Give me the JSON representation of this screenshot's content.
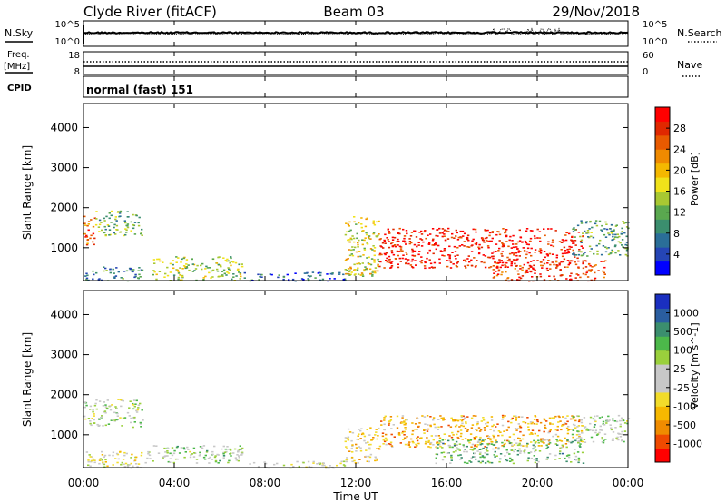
{
  "header": {
    "station": "Clyde River (fitACF)",
    "beam": "Beam 03",
    "date": "29/Nov/2018"
  },
  "noise_panel": {
    "left_label": "N.Sky",
    "right_label": "N.Search",
    "left_ticks": [
      "10^5",
      "10^0"
    ],
    "right_ticks": [
      "10^5",
      "10^0"
    ]
  },
  "freq_panel": {
    "left_label_1": "Freq.",
    "left_label_2": "[MHz]",
    "right_label": "Nave",
    "left_ticks": [
      "18",
      "8"
    ],
    "right_ticks": [
      "60",
      "0"
    ]
  },
  "cpid": {
    "label": "CPID",
    "text": "normal (fast) 151"
  },
  "x_axis": {
    "ticks": [
      "00:00",
      "04:00",
      "08:00",
      "12:00",
      "16:00",
      "20:00",
      "00:00"
    ],
    "label": "Time UT"
  },
  "chart_data": [
    {
      "type": "heatmap",
      "name": "power",
      "xlabel": "Time UT",
      "ylabel": "Slant Range [km]",
      "xlim": [
        0,
        24
      ],
      "ylim": [
        180,
        4600
      ],
      "yticks": [
        "4000",
        "3000",
        "2000",
        "1000"
      ],
      "colorbar": {
        "label": "Power [dB]",
        "ticks": [
          "28",
          "24",
          "20",
          "16",
          "12",
          "8",
          "4"
        ],
        "range": [
          0,
          30
        ],
        "colors": [
          "#0000ff",
          "#2545b5",
          "#2a6e98",
          "#3b8e6e",
          "#5aa84f",
          "#a8c832",
          "#f0e21a",
          "#f4b800",
          "#ef8a00",
          "#e85a00",
          "#e02800",
          "#ff0000"
        ]
      },
      "regions": [
        {
          "t": [
            0.0,
            0.5
          ],
          "r": [
            1000,
            1800
          ],
          "db": 24
        },
        {
          "t": [
            0.5,
            2.6
          ],
          "r": [
            1300,
            1950
          ],
          "db": 12
        },
        {
          "t": [
            0.0,
            2.6
          ],
          "r": [
            180,
            550
          ],
          "db": 8
        },
        {
          "t": [
            3.0,
            7.0
          ],
          "r": [
            200,
            800
          ],
          "db": 14
        },
        {
          "t": [
            7.0,
            11.5
          ],
          "r": [
            180,
            400
          ],
          "db": 6
        },
        {
          "t": [
            11.5,
            13.0
          ],
          "r": [
            300,
            1800
          ],
          "db": 16
        },
        {
          "t": [
            13.0,
            22.0
          ],
          "r": [
            500,
            1500
          ],
          "db": 28
        },
        {
          "t": [
            18.0,
            23.0
          ],
          "r": [
            180,
            700
          ],
          "db": 26
        },
        {
          "t": [
            21.5,
            24.0
          ],
          "r": [
            800,
            1700
          ],
          "db": 10
        }
      ]
    },
    {
      "type": "heatmap",
      "name": "velocity",
      "xlabel": "Time UT",
      "ylabel": "Slant Range [km]",
      "xlim": [
        0,
        24
      ],
      "ylim": [
        180,
        4600
      ],
      "yticks": [
        "4000",
        "3000",
        "2000",
        "1000"
      ],
      "colorbar": {
        "label": "Velocity [m s^-1]",
        "ticks": [
          "1000",
          "500",
          "100",
          "25",
          "-25",
          "-100",
          "-500",
          "-1000"
        ],
        "range": [
          -1200,
          1200
        ],
        "colors": [
          "#ff0000",
          "#ef4a00",
          "#f08c00",
          "#f6b800",
          "#f2dc2a",
          "#c8c8c8",
          "#c8c8c8",
          "#9ad03c",
          "#4cb84a",
          "#3b8e6e",
          "#2a5ea0",
          "#1a2fc0"
        ]
      },
      "regions": [
        {
          "t": [
            0.0,
            2.6
          ],
          "r": [
            1200,
            1900
          ],
          "v": 150
        },
        {
          "t": [
            0.0,
            3.0
          ],
          "r": [
            180,
            600
          ],
          "v": -60
        },
        {
          "t": [
            3.0,
            7.0
          ],
          "r": [
            300,
            750
          ],
          "v": 200
        },
        {
          "t": [
            7.0,
            11.5
          ],
          "r": [
            180,
            350
          ],
          "v": -10
        },
        {
          "t": [
            11.5,
            13.0
          ],
          "r": [
            300,
            1200
          ],
          "v": -300
        },
        {
          "t": [
            13.0,
            22.0
          ],
          "r": [
            700,
            1500
          ],
          "v": -500
        },
        {
          "t": [
            15.5,
            22.0
          ],
          "r": [
            300,
            900
          ],
          "v": 400
        },
        {
          "t": [
            21.5,
            24.0
          ],
          "r": [
            800,
            1500
          ],
          "v": 200
        }
      ]
    }
  ]
}
